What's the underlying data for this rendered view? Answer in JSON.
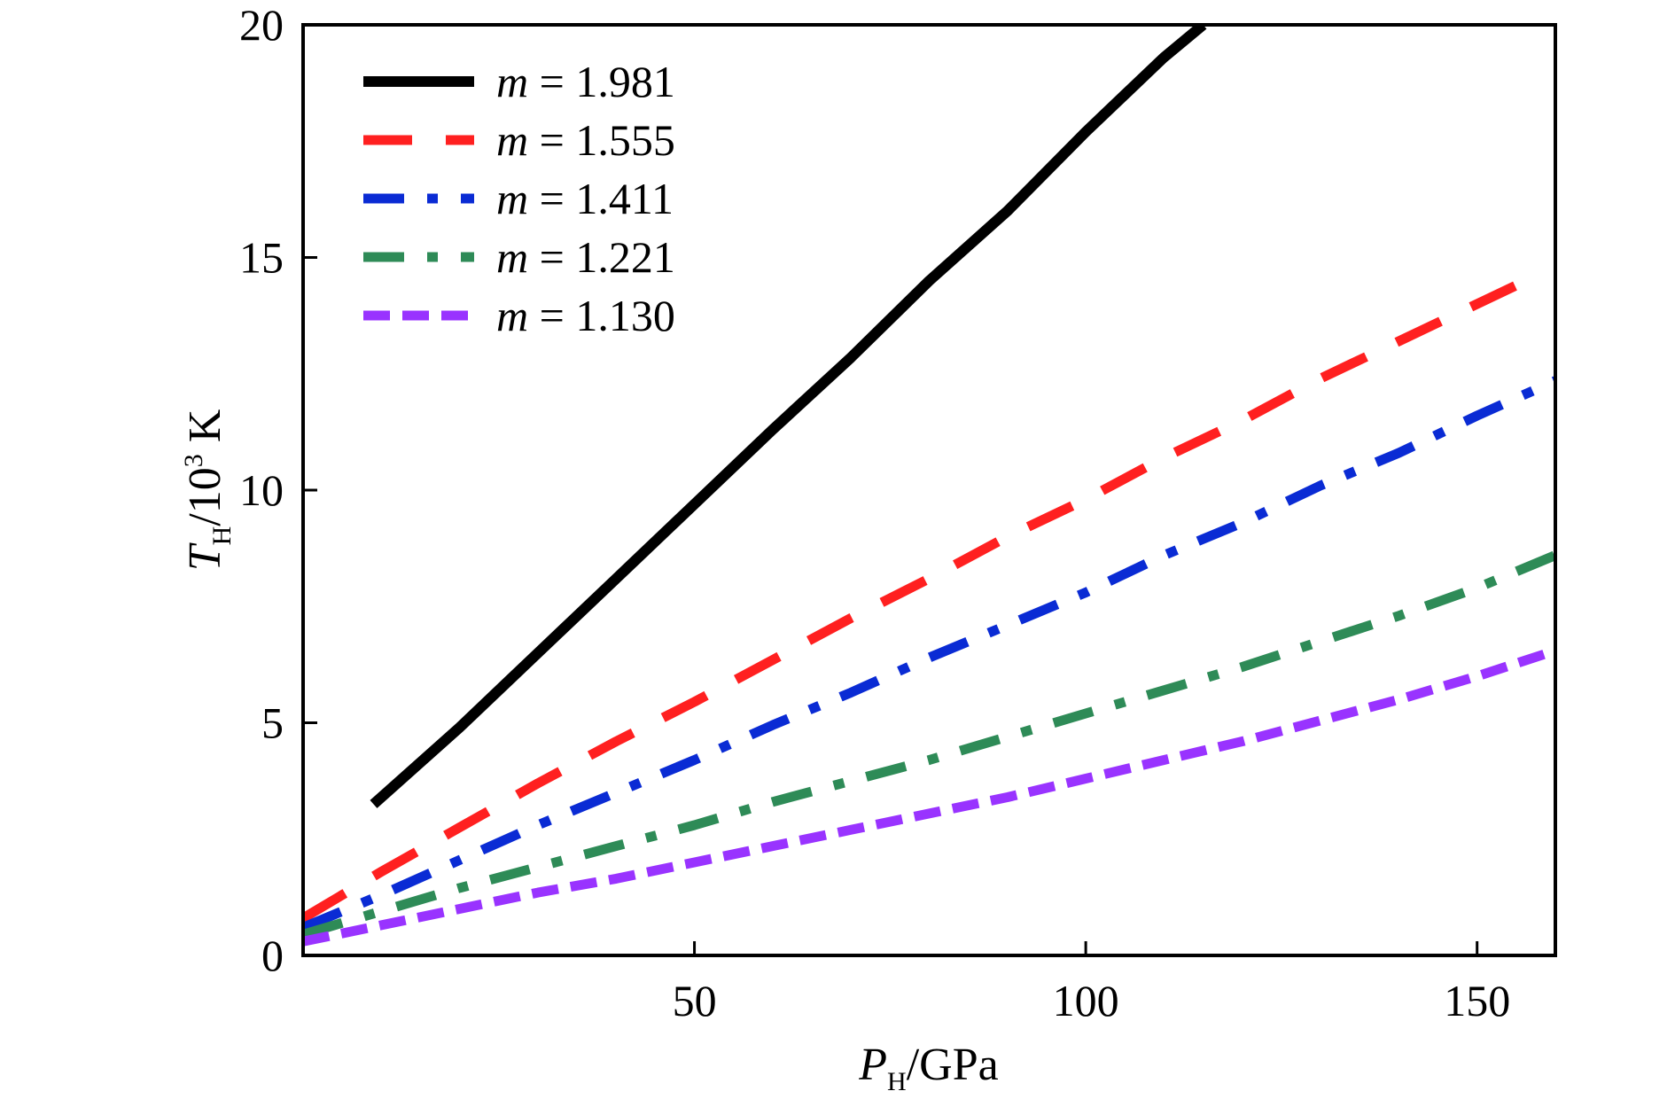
{
  "chart_data": {
    "type": "line",
    "title": "",
    "xlabel": {
      "symbol": "P",
      "subscript": "H",
      "unit": "/GPa"
    },
    "ylabel": {
      "symbol": "T",
      "subscript": "H",
      "unit_prefix": "/10",
      "unit_power": "3",
      "unit_suffix": " K"
    },
    "xlim": [
      0,
      160
    ],
    "ylim": [
      0,
      20
    ],
    "x_ticks": [
      50,
      100,
      150
    ],
    "y_ticks": [
      0,
      5,
      10,
      15,
      20
    ],
    "grid": false,
    "legend_position": "top-left",
    "series": [
      {
        "name": "1.981",
        "color": "#000000",
        "dash": "solid",
        "x": [
          9,
          20,
          30,
          40,
          50,
          60,
          70,
          80,
          90,
          100,
          110,
          115
        ],
        "y": [
          3.25,
          4.9,
          6.5,
          8.1,
          9.7,
          11.3,
          12.85,
          14.5,
          16.0,
          17.7,
          19.3,
          20.0
        ]
      },
      {
        "name": "1.555",
        "color": "#ff2020",
        "dash": "long-dash",
        "x": [
          0,
          10,
          20,
          30,
          40,
          50,
          60,
          70,
          80,
          90,
          100,
          110,
          120,
          130,
          140,
          155
        ],
        "y": [
          0.8,
          1.8,
          2.75,
          3.7,
          4.6,
          5.45,
          6.35,
          7.25,
          8.1,
          9.0,
          9.8,
          10.7,
          11.5,
          12.4,
          13.2,
          14.4
        ]
      },
      {
        "name": "1.411",
        "color": "#0a2bd4",
        "dash": "dash-dot",
        "x": [
          0,
          10,
          20,
          30,
          40,
          50,
          60,
          70,
          80,
          90,
          100,
          110,
          120,
          130,
          140,
          150,
          160
        ],
        "y": [
          0.6,
          1.3,
          2.05,
          2.8,
          3.5,
          4.2,
          4.95,
          5.65,
          6.4,
          7.1,
          7.8,
          8.6,
          9.3,
          10.1,
          10.8,
          11.6,
          12.35
        ]
      },
      {
        "name": "1.221",
        "color": "#2e8b57",
        "dash": "dash-dot",
        "x": [
          0,
          10,
          20,
          30,
          40,
          50,
          60,
          70,
          80,
          90,
          100,
          110,
          120,
          130,
          140,
          150,
          160
        ],
        "y": [
          0.45,
          0.95,
          1.45,
          1.9,
          2.35,
          2.8,
          3.3,
          3.75,
          4.2,
          4.7,
          5.2,
          5.7,
          6.2,
          6.75,
          7.3,
          7.9,
          8.6
        ]
      },
      {
        "name": "1.130",
        "color": "#9933ff",
        "dash": "short-dash",
        "x": [
          0,
          10,
          20,
          30,
          40,
          50,
          60,
          70,
          80,
          90,
          100,
          110,
          120,
          130,
          140,
          150,
          160
        ],
        "y": [
          0.3,
          0.65,
          1.0,
          1.35,
          1.65,
          2.0,
          2.35,
          2.7,
          3.05,
          3.4,
          3.8,
          4.2,
          4.6,
          5.05,
          5.5,
          6.0,
          6.55
        ]
      }
    ]
  },
  "legend": {
    "var": "m",
    "eq": " = "
  }
}
